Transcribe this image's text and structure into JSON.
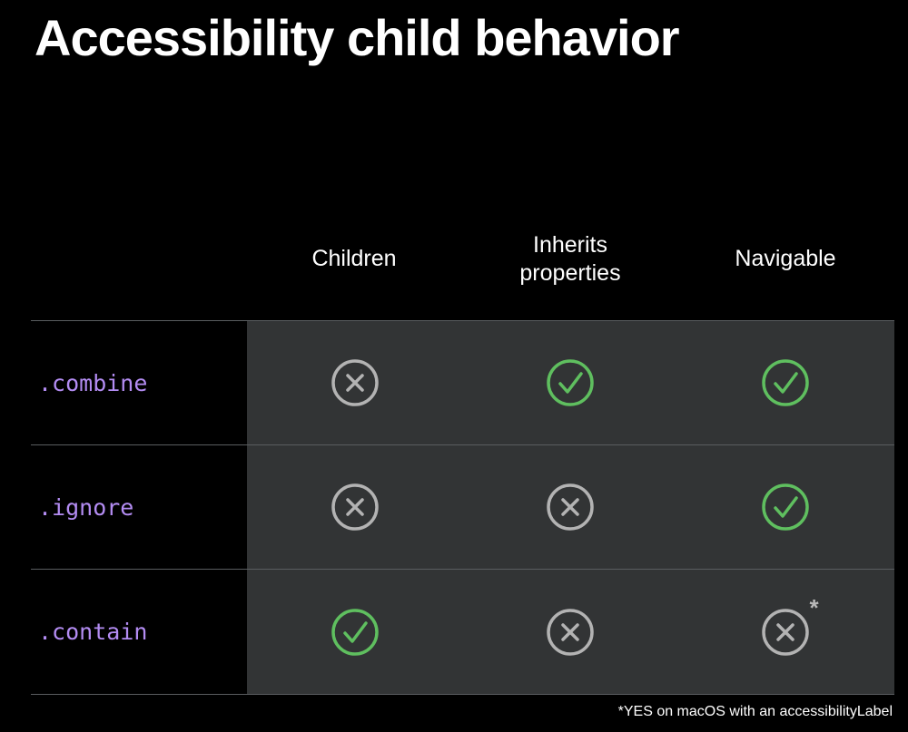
{
  "title": "Accessibility child behavior",
  "columns": [
    "Children",
    "Inherits\nproperties",
    "Navigable"
  ],
  "column_lines": [
    [
      "Children"
    ],
    [
      "Inherits",
      "properties"
    ],
    [
      "Navigable"
    ]
  ],
  "rows": [
    {
      "label": ".combine",
      "values": [
        "no",
        "yes",
        "yes"
      ]
    },
    {
      "label": ".ignore",
      "values": [
        "no",
        "no",
        "yes"
      ]
    },
    {
      "label": ".contain",
      "values": [
        "yes",
        "no",
        "no*"
      ]
    }
  ],
  "asterisk": "*",
  "footnote": "*YES on macOS with an accessibilityLabel",
  "colors": {
    "background": "#000000",
    "table_cell_background": "#323435",
    "modifier_text": "#b38cf2",
    "check_icon": "#5fbf5f",
    "cross_icon": "#b3b3b3",
    "divider": "#5a5d60"
  },
  "icons": {
    "yes": "checkmark-circle-icon",
    "no": "xmark-circle-icon"
  }
}
